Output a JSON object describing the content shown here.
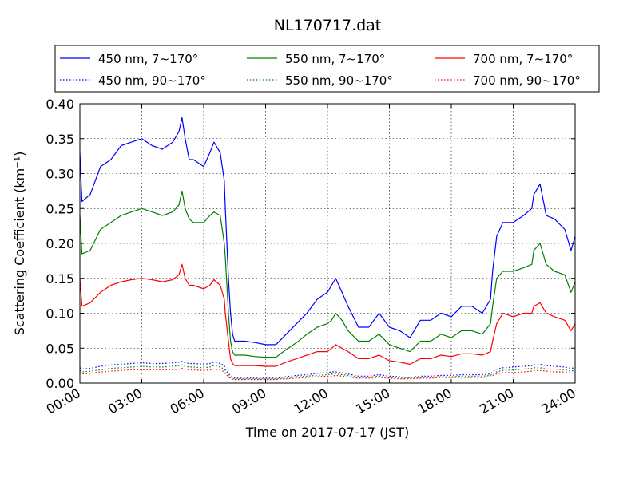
{
  "chart_data": {
    "type": "line",
    "title": "NL170717.dat",
    "xlabel": "Time on 2017-07-17 (JST)",
    "ylabel": "Scattering Coefficient (km⁻¹)",
    "xlim": [
      0,
      24
    ],
    "ylim": [
      0,
      0.4
    ],
    "grid": true,
    "legend_position": "top",
    "x_ticks": [
      "00:00",
      "03:00",
      "06:00",
      "09:00",
      "12:00",
      "15:00",
      "18:00",
      "21:00",
      "24:00"
    ],
    "y_ticks": [
      "0.00",
      "0.05",
      "0.10",
      "0.15",
      "0.20",
      "0.25",
      "0.30",
      "0.35",
      "0.40"
    ],
    "x_hours": [
      0,
      0.1,
      0.5,
      1,
      1.5,
      2,
      2.5,
      3,
      3.5,
      4,
      4.5,
      4.8,
      4.95,
      5.1,
      5.3,
      5.5,
      6,
      6.3,
      6.5,
      6.8,
      7,
      7.05,
      7.2,
      7.3,
      7.4,
      7.5,
      7.7,
      8,
      8.5,
      9,
      9.5,
      10,
      10.5,
      11,
      11.5,
      12,
      12.2,
      12.4,
      12.7,
      13,
      13.5,
      14,
      14.5,
      15,
      15.5,
      16,
      16.5,
      17,
      17.5,
      18,
      18.5,
      19,
      19.5,
      19.9,
      20,
      20.2,
      20.5,
      21,
      21.5,
      21.9,
      22,
      22.3,
      22.6,
      23,
      23.5,
      23.8,
      24
    ],
    "series": [
      {
        "name": "450 nm, 7∼170°",
        "color": "#0000ff",
        "style": "solid",
        "values": [
          0.33,
          0.26,
          0.27,
          0.31,
          0.32,
          0.34,
          0.345,
          0.35,
          0.34,
          0.335,
          0.345,
          0.36,
          0.38,
          0.35,
          0.32,
          0.32,
          0.31,
          0.33,
          0.345,
          0.33,
          0.29,
          0.25,
          0.15,
          0.1,
          0.07,
          0.06,
          0.06,
          0.06,
          0.058,
          0.055,
          0.055,
          0.07,
          0.085,
          0.1,
          0.12,
          0.13,
          0.14,
          0.15,
          0.13,
          0.11,
          0.08,
          0.08,
          0.1,
          0.08,
          0.075,
          0.065,
          0.09,
          0.09,
          0.1,
          0.095,
          0.11,
          0.11,
          0.1,
          0.12,
          0.16,
          0.21,
          0.23,
          0.23,
          0.24,
          0.25,
          0.27,
          0.285,
          0.24,
          0.235,
          0.22,
          0.19,
          0.21
        ]
      },
      {
        "name": "450 nm, 90∼170°",
        "color": "#0000ff",
        "style": "dotted",
        "values": [
          0.022,
          0.02,
          0.021,
          0.024,
          0.026,
          0.027,
          0.028,
          0.029,
          0.028,
          0.028,
          0.029,
          0.03,
          0.031,
          0.029,
          0.028,
          0.028,
          0.027,
          0.028,
          0.03,
          0.028,
          0.025,
          0.02,
          0.014,
          0.01,
          0.008,
          0.007,
          0.007,
          0.007,
          0.007,
          0.007,
          0.007,
          0.009,
          0.011,
          0.012,
          0.014,
          0.015,
          0.016,
          0.016,
          0.015,
          0.013,
          0.01,
          0.01,
          0.012,
          0.01,
          0.009,
          0.008,
          0.01,
          0.01,
          0.011,
          0.011,
          0.012,
          0.012,
          0.012,
          0.013,
          0.016,
          0.02,
          0.022,
          0.023,
          0.024,
          0.025,
          0.026,
          0.027,
          0.025,
          0.024,
          0.023,
          0.021,
          0.022
        ]
      },
      {
        "name": "550 nm, 7∼170°",
        "color": "#008000",
        "style": "solid",
        "values": [
          0.24,
          0.185,
          0.19,
          0.22,
          0.23,
          0.24,
          0.245,
          0.25,
          0.245,
          0.24,
          0.245,
          0.255,
          0.275,
          0.25,
          0.235,
          0.23,
          0.23,
          0.24,
          0.245,
          0.24,
          0.2,
          0.18,
          0.1,
          0.06,
          0.045,
          0.04,
          0.04,
          0.04,
          0.038,
          0.037,
          0.037,
          0.048,
          0.058,
          0.07,
          0.08,
          0.085,
          0.09,
          0.1,
          0.09,
          0.075,
          0.06,
          0.06,
          0.07,
          0.055,
          0.05,
          0.045,
          0.06,
          0.06,
          0.07,
          0.065,
          0.075,
          0.075,
          0.07,
          0.085,
          0.11,
          0.15,
          0.16,
          0.16,
          0.165,
          0.17,
          0.19,
          0.2,
          0.17,
          0.16,
          0.155,
          0.13,
          0.145
        ]
      },
      {
        "name": "550 nm, 90∼170°",
        "color": "#008000",
        "style": "dotted",
        "values": [
          0.018,
          0.016,
          0.017,
          0.019,
          0.021,
          0.022,
          0.023,
          0.024,
          0.023,
          0.023,
          0.024,
          0.025,
          0.026,
          0.024,
          0.023,
          0.023,
          0.022,
          0.023,
          0.025,
          0.023,
          0.02,
          0.016,
          0.011,
          0.008,
          0.006,
          0.006,
          0.006,
          0.006,
          0.006,
          0.006,
          0.006,
          0.007,
          0.009,
          0.01,
          0.011,
          0.012,
          0.013,
          0.013,
          0.012,
          0.011,
          0.008,
          0.008,
          0.01,
          0.008,
          0.007,
          0.007,
          0.008,
          0.008,
          0.009,
          0.009,
          0.01,
          0.01,
          0.01,
          0.011,
          0.013,
          0.016,
          0.018,
          0.019,
          0.02,
          0.021,
          0.022,
          0.022,
          0.02,
          0.02,
          0.019,
          0.017,
          0.018
        ]
      },
      {
        "name": "700 nm, 7∼170°",
        "color": "#ff0000",
        "style": "solid",
        "values": [
          0.15,
          0.11,
          0.115,
          0.13,
          0.14,
          0.145,
          0.148,
          0.15,
          0.148,
          0.145,
          0.148,
          0.155,
          0.17,
          0.15,
          0.14,
          0.14,
          0.135,
          0.14,
          0.148,
          0.14,
          0.12,
          0.1,
          0.06,
          0.035,
          0.028,
          0.025,
          0.025,
          0.025,
          0.025,
          0.024,
          0.024,
          0.03,
          0.035,
          0.04,
          0.045,
          0.045,
          0.05,
          0.055,
          0.05,
          0.045,
          0.035,
          0.035,
          0.04,
          0.032,
          0.03,
          0.027,
          0.035,
          0.035,
          0.04,
          0.038,
          0.042,
          0.042,
          0.04,
          0.045,
          0.06,
          0.085,
          0.1,
          0.095,
          0.1,
          0.1,
          0.11,
          0.115,
          0.1,
          0.095,
          0.09,
          0.075,
          0.085
        ]
      },
      {
        "name": "700 nm, 90∼170°",
        "color": "#ff0000",
        "style": "dotted",
        "values": [
          0.015,
          0.013,
          0.014,
          0.016,
          0.017,
          0.018,
          0.019,
          0.019,
          0.019,
          0.019,
          0.019,
          0.02,
          0.021,
          0.02,
          0.019,
          0.019,
          0.018,
          0.019,
          0.02,
          0.019,
          0.016,
          0.013,
          0.009,
          0.006,
          0.005,
          0.005,
          0.005,
          0.005,
          0.005,
          0.005,
          0.005,
          0.006,
          0.007,
          0.008,
          0.009,
          0.01,
          0.01,
          0.011,
          0.01,
          0.009,
          0.007,
          0.007,
          0.008,
          0.007,
          0.006,
          0.006,
          0.007,
          0.007,
          0.008,
          0.008,
          0.008,
          0.008,
          0.008,
          0.009,
          0.011,
          0.013,
          0.015,
          0.015,
          0.016,
          0.017,
          0.018,
          0.018,
          0.017,
          0.016,
          0.016,
          0.014,
          0.015
        ]
      }
    ]
  }
}
